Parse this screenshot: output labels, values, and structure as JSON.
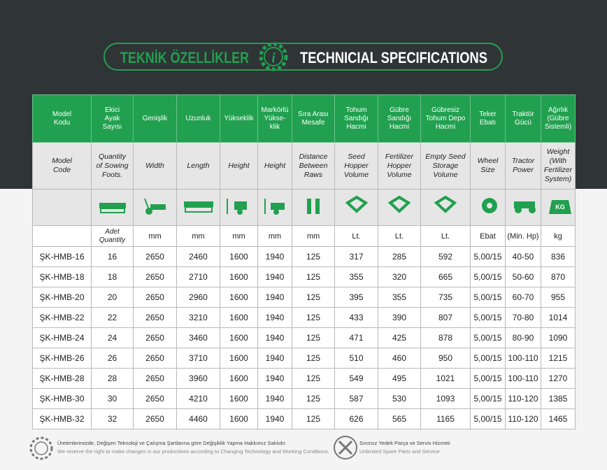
{
  "header": {
    "title_tr": "TEKNİK ÖZELLİKLER",
    "icon": "i",
    "title_en": "TECHNICIAL SPECIFICATIONS"
  },
  "table": {
    "headers_tr": [
      "Model\nKodu",
      "Ekici\nAyak\nSayısı",
      "Genişlik",
      "Uzunluk",
      "Yükseklik",
      "Markörlü\nYükse-\nklik",
      "Sıra Arası\nMesafe",
      "Tohum\nSandığı\nHacmi",
      "Gübre\nSandığı\nHacmi",
      "Gübresiz\nTohum Depo\nHacmi",
      "Teker\nEbatı",
      "Traktör\nGücü",
      "Ağırlık\n(Gübre\nSistemli)"
    ],
    "headers_en": [
      "Model\nCode",
      "Quantity\nof Sowing\nFoots.",
      "Width",
      "Length",
      "Height",
      "Height",
      "Distance\nBetween\nRaws",
      "Seed\nHopper\nVolume",
      "Fertilizer\nHopper\nVolume",
      "Empty Seed\nStorage\nVolume",
      "Wheel\nSize",
      "Tractor\nPower",
      "Weight\n(With\nFertilizer\nSystem)"
    ],
    "icon_label": "KG",
    "units": [
      "Adet\nQuantity",
      "mm",
      "mm",
      "mm",
      "mm",
      "mm",
      "Lt.",
      "Lt.",
      "Lt.",
      "Ebat",
      "(Min. Hp)",
      "kg"
    ],
    "rows": [
      [
        "ŞK-HMB-16",
        16,
        2650,
        2460,
        1600,
        1940,
        125,
        317,
        285,
        592,
        "5,00/15",
        "40-50",
        836
      ],
      [
        "ŞK-HMB-18",
        18,
        2650,
        2710,
        1600,
        1940,
        125,
        355,
        320,
        665,
        "5,00/15",
        "50-60",
        870
      ],
      [
        "ŞK-HMB-20",
        20,
        2650,
        2960,
        1600,
        1940,
        125,
        395,
        355,
        735,
        "5,00/15",
        "60-70",
        955
      ],
      [
        "ŞK-HMB-22",
        22,
        2650,
        3210,
        1600,
        1940,
        125,
        433,
        390,
        807,
        "5,00/15",
        "70-80",
        1014
      ],
      [
        "ŞK-HMB-24",
        24,
        2650,
        3460,
        1600,
        1940,
        125,
        471,
        425,
        878,
        "5,00/15",
        "80-90",
        1090
      ],
      [
        "ŞK-HMB-26",
        26,
        2650,
        3710,
        1600,
        1940,
        125,
        510,
        460,
        950,
        "5,00/15",
        "100-110",
        1215
      ],
      [
        "ŞK-HMB-28",
        28,
        2650,
        3960,
        1600,
        1940,
        125,
        549,
        495,
        1021,
        "5,00/15",
        "100-110",
        1270
      ],
      [
        "ŞK-HMB-30",
        30,
        2650,
        4210,
        1600,
        1940,
        125,
        587,
        530,
        1093,
        "5,00/15",
        "110-120",
        1385
      ],
      [
        "ŞK-HMB-32",
        32,
        2650,
        4460,
        1600,
        1940,
        125,
        626,
        565,
        1165,
        "5,00/15",
        "110-120",
        1465
      ]
    ]
  },
  "footer": {
    "note_tr": "Üretimlerimizde, Değişen Teknoloji ve Çalışma Şartlarına göre Değişiklik Yapma Hakkımız Saklıdır.",
    "note_en": "We reserve the right to make changes in our productions according to Changing Technology and Working Conditions.",
    "service_tr": "Sınırsız Yedek Parça ve Servis Hizmeti",
    "service_en": "Unlimited Spare Parts and Service"
  }
}
